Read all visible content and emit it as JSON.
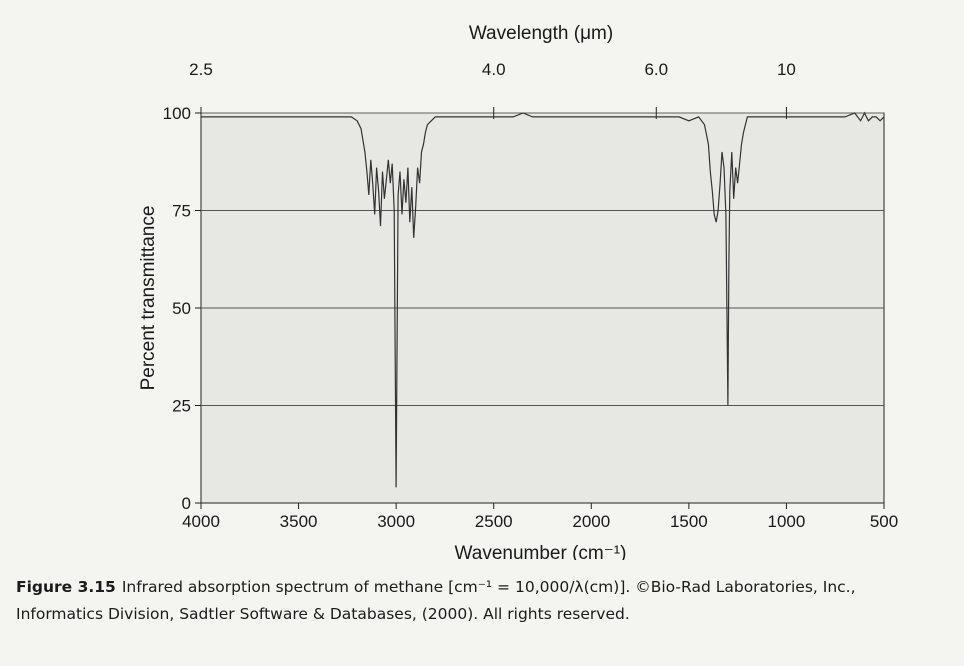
{
  "caption": {
    "label": "Figure 3.15",
    "line1": "Infrared absorption spectrum of methane [cm⁻¹ = 10,000/λ(cm)]. ©Bio-Rad Laboratories, Inc.,",
    "line2": "Informatics Division, Sadtler Software & Databases, (2000). All rights reserved."
  },
  "chart_data": {
    "type": "line",
    "xlabel": "Wavenumber (cm⁻¹)",
    "ylabel": "Percent transmittance",
    "top_axis_label": "Wavelength (μm)",
    "xlim": [
      4000,
      500
    ],
    "ylim": [
      0,
      100
    ],
    "x_ticks": [
      4000,
      3500,
      3000,
      2500,
      2000,
      1500,
      1000,
      500
    ],
    "y_ticks": [
      0,
      25,
      50,
      75,
      100
    ],
    "top_ticks": [
      {
        "label": "2.5",
        "wavenumber": 4000
      },
      {
        "label": "4.0",
        "wavenumber": 2500
      },
      {
        "label": "6.0",
        "wavenumber": 1667
      },
      {
        "label": "10",
        "wavenumber": 1000
      }
    ],
    "grid": "horizontal",
    "series": [
      {
        "x": [
          4000,
          3900,
          3800,
          3700,
          3600,
          3500,
          3400,
          3300,
          3230,
          3200,
          3180,
          3160,
          3150,
          3140,
          3130,
          3120,
          3110,
          3100,
          3090,
          3080,
          3070,
          3060,
          3050,
          3040,
          3030,
          3020,
          3010,
          3000,
          2990,
          2980,
          2970,
          2960,
          2950,
          2940,
          2930,
          2920,
          2910,
          2900,
          2890,
          2880,
          2870,
          2860,
          2850,
          2840,
          2820,
          2800,
          2750,
          2700,
          2650,
          2600,
          2500,
          2400,
          2350,
          2300,
          2200,
          2100,
          2000,
          1900,
          1800,
          1700,
          1600,
          1550,
          1500,
          1450,
          1420,
          1400,
          1390,
          1380,
          1370,
          1360,
          1350,
          1340,
          1330,
          1320,
          1310,
          1305,
          1300,
          1295,
          1290,
          1280,
          1270,
          1260,
          1250,
          1240,
          1230,
          1220,
          1210,
          1200,
          1180,
          1150,
          1100,
          1000,
          900,
          800,
          700,
          650,
          620,
          600,
          580,
          560,
          540,
          520,
          500
        ],
        "y": [
          99,
          99,
          99,
          99,
          99,
          99,
          99,
          99,
          99,
          98,
          96,
          90,
          85,
          79,
          88,
          82,
          74,
          86,
          80,
          71,
          85,
          78,
          83,
          88,
          82,
          87,
          75,
          4,
          79,
          85,
          74,
          83,
          77,
          86,
          72,
          81,
          68,
          76,
          86,
          82,
          90,
          92,
          95,
          97,
          98,
          99,
          99,
          99,
          99,
          99,
          99,
          99,
          100,
          99,
          99,
          99,
          99,
          99,
          99,
          99,
          99,
          99,
          98,
          99,
          97,
          92,
          85,
          80,
          74,
          72,
          75,
          82,
          90,
          86,
          74,
          50,
          25,
          62,
          80,
          90,
          78,
          86,
          82,
          87,
          92,
          95,
          97,
          99,
          99,
          99,
          99,
          99,
          99,
          99,
          99,
          100,
          98,
          100,
          98,
          99,
          99,
          98,
          99
        ]
      }
    ]
  }
}
